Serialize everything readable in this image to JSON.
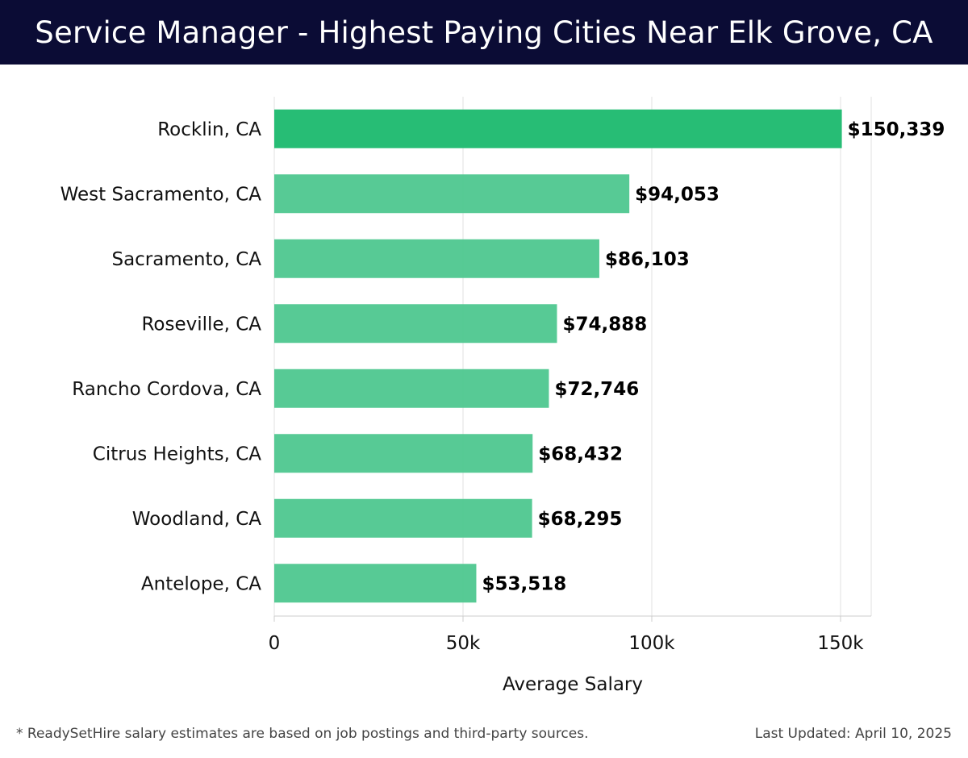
{
  "header": {
    "title": "Service Manager - Highest Paying Cities Near Elk Grove, CA"
  },
  "chart_data": {
    "type": "bar",
    "orientation": "horizontal",
    "categories": [
      "Rocklin, CA",
      "West Sacramento, CA",
      "Sacramento, CA",
      "Roseville, CA",
      "Rancho Cordova, CA",
      "Citrus Heights, CA",
      "Woodland, CA",
      "Antelope, CA"
    ],
    "values": [
      150339,
      94053,
      86103,
      74888,
      72746,
      68432,
      68295,
      53518
    ],
    "value_labels": [
      "$150,339",
      "$94,053",
      "$86,103",
      "$74,888",
      "$72,746",
      "$68,432",
      "$68,295",
      "$53,518"
    ],
    "title": "Service Manager - Highest Paying Cities Near Elk Grove, CA",
    "xlabel": "Average Salary",
    "ylabel": "",
    "xlim": [
      0,
      158000
    ],
    "xticks": [
      0,
      50000,
      100000,
      150000
    ],
    "xtick_labels": [
      "0",
      "50k",
      "100k",
      "150k"
    ],
    "grid": true,
    "legend": "none",
    "colors": {
      "top_bar": "#27bd75",
      "bar": "#4ec78f",
      "grid": "#e2e2e2",
      "axis": "#cccccc",
      "header_bg": "#0b0c35"
    }
  },
  "footer": {
    "note": "* ReadySetHire salary estimates are based on job postings and third-party sources.",
    "updated": "Last Updated: April 10, 2025"
  }
}
